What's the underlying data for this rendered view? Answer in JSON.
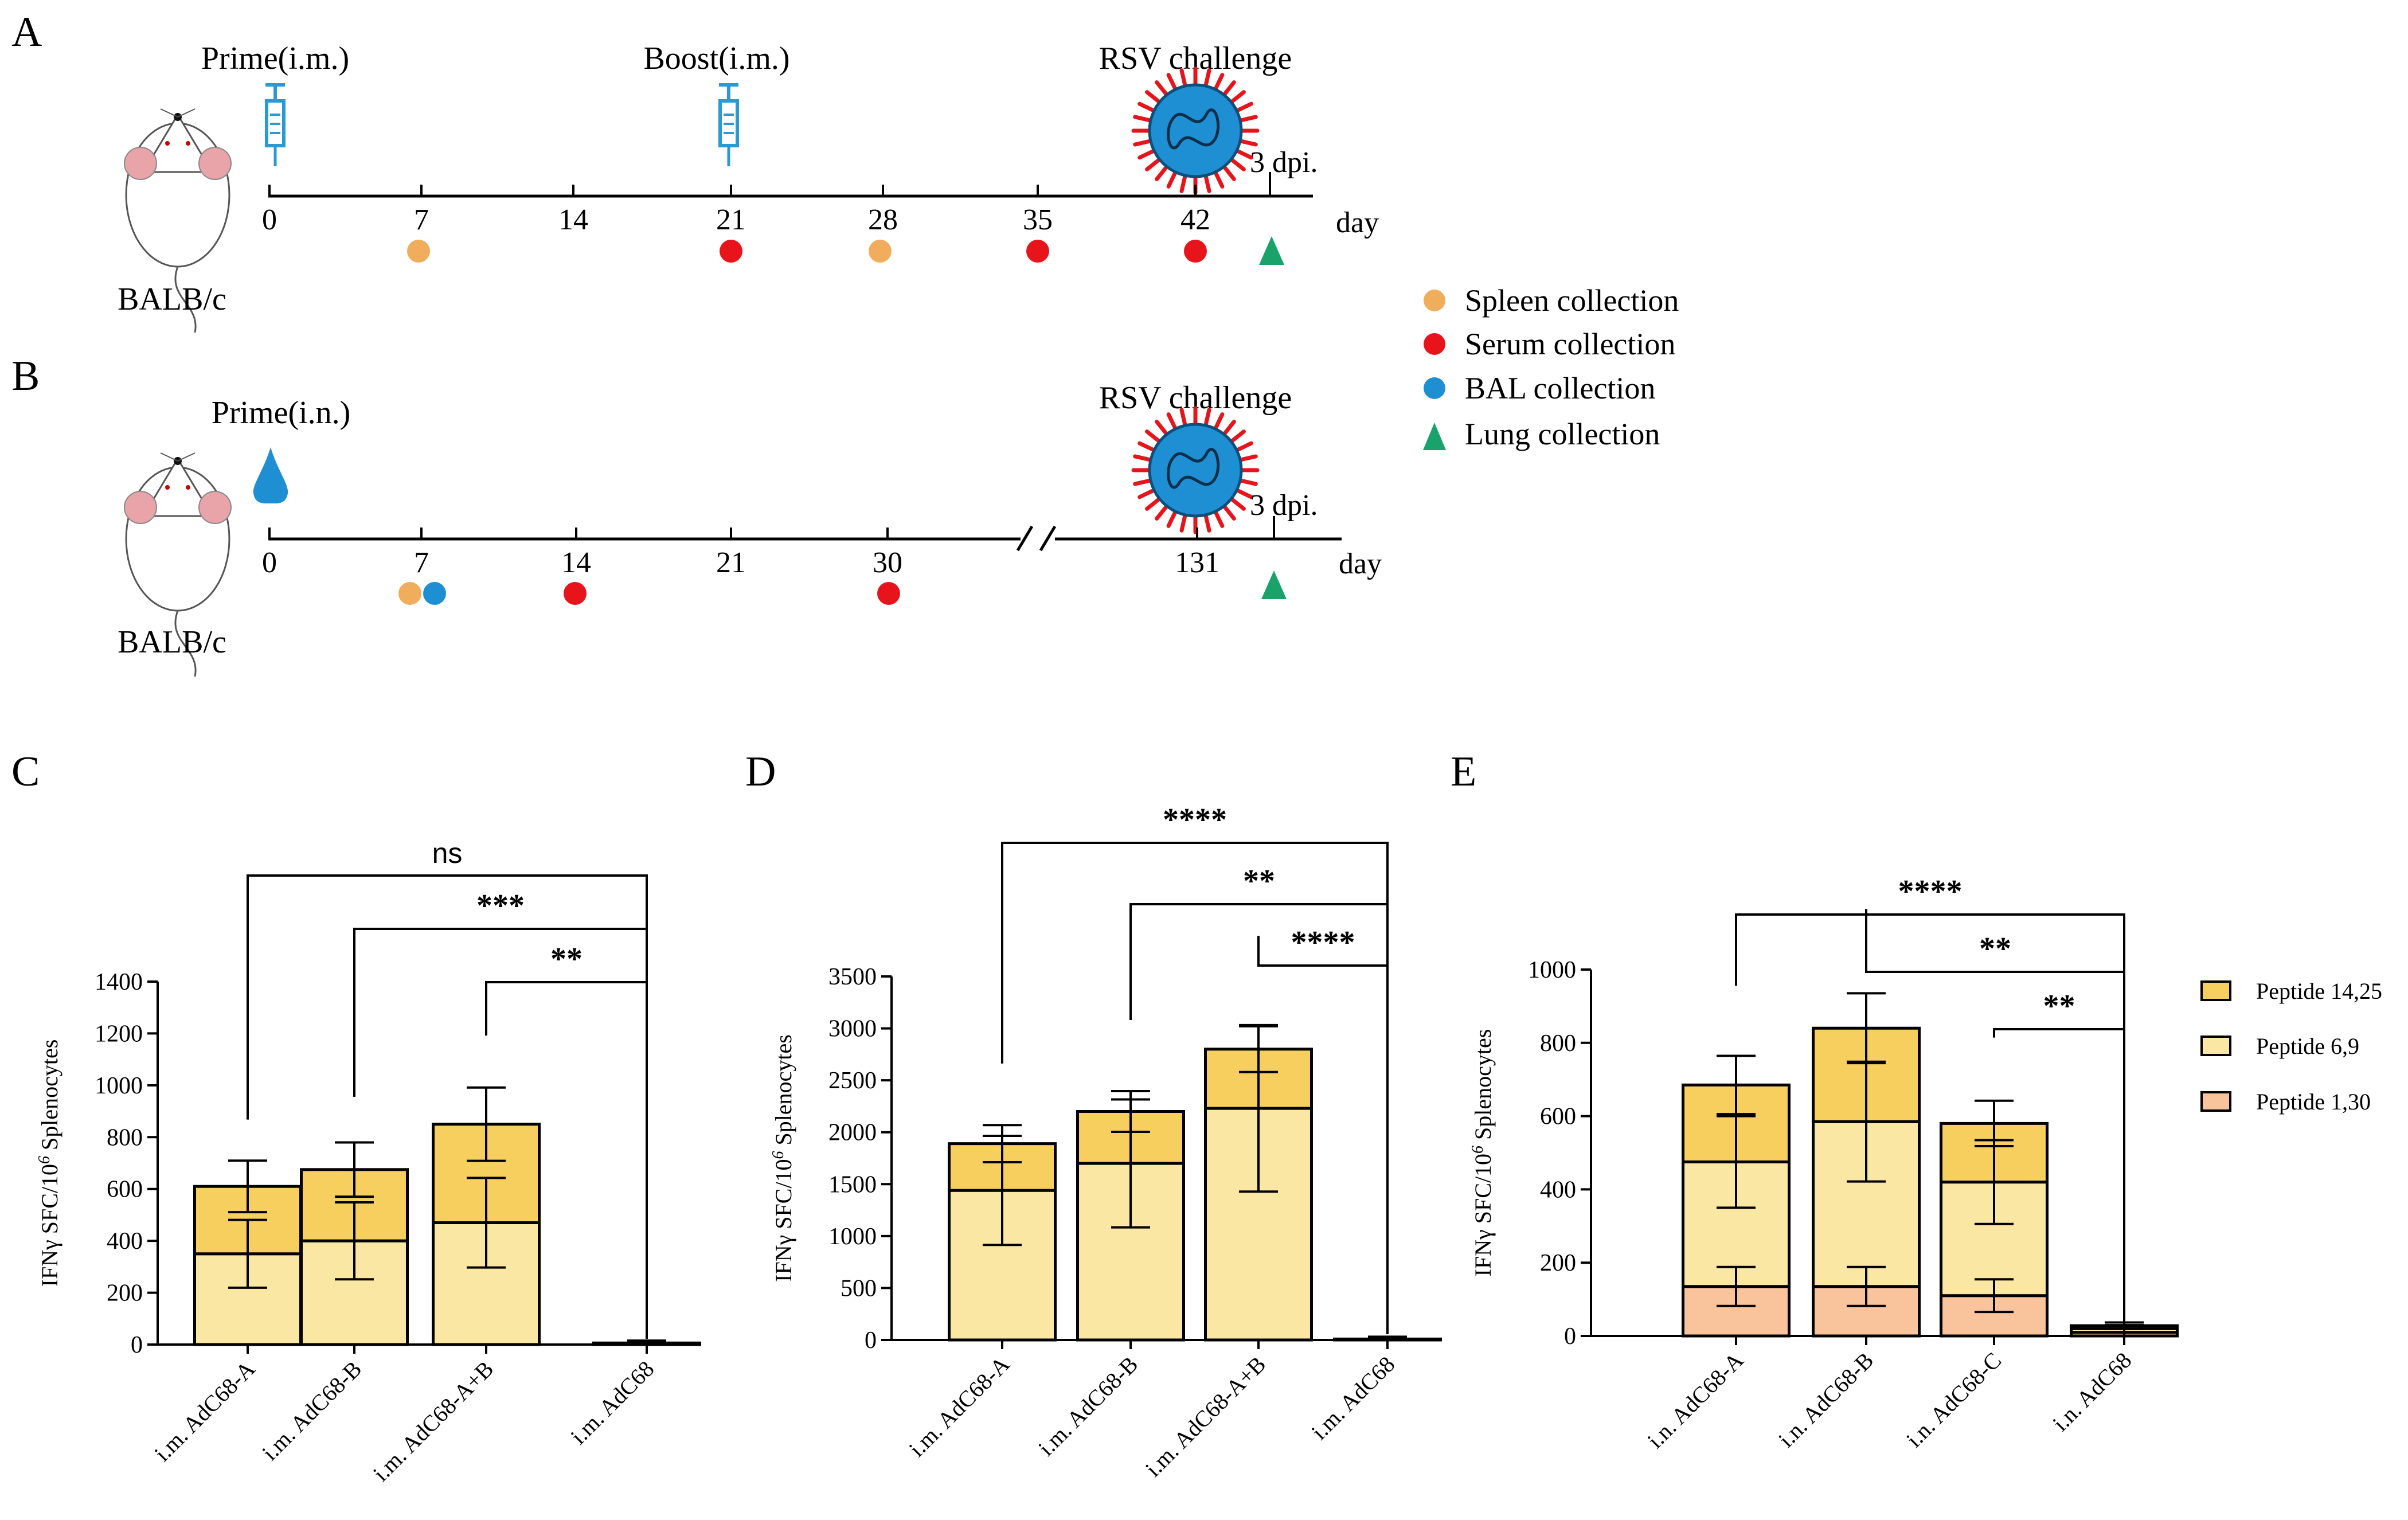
{
  "colors": {
    "p14": "#f7cf5f",
    "p69": "#fbe7a4",
    "p130": "#f9c49c",
    "spleen": "#f0ad5c",
    "serum": "#e8141c",
    "bal": "#1f8fd3",
    "lung": "#19a26a",
    "syringe": "#2a9ad7",
    "virus_body": "#1f8fd3",
    "virus_spike": "#e8141c"
  },
  "panel_a": {
    "label": "A",
    "prime": "Prime(i.m.)",
    "boost": "Boost(i.m.)",
    "challenge": "RSV challenge",
    "dpi": "3 dpi.",
    "mouse": "BALB/c",
    "day": "day",
    "ticks": [
      "0",
      "7",
      "14",
      "21",
      "28",
      "35",
      "42"
    ]
  },
  "panel_b": {
    "label": "B",
    "prime": "Prime(i.n.)",
    "challenge": "RSV challenge",
    "dpi": "3 dpi.",
    "mouse": "BALB/c",
    "day": "day",
    "ticks": [
      "0",
      "7",
      "14",
      "21",
      "30",
      "131"
    ]
  },
  "legend": {
    "spleen": "Spleen collection",
    "serum": "Serum collection",
    "bal": "BAL collection",
    "lung": "Lung collection"
  },
  "chart_data": [
    {
      "type": "bar",
      "label": "C",
      "stacked": true,
      "ylabel": "IFNγ SFC/10^6 Splenocytes",
      "ylim": [
        0,
        1400
      ],
      "yticks": [
        "0",
        "200",
        "400",
        "600",
        "800",
        "1000",
        "1200",
        "1400"
      ],
      "categories": [
        "i.m. AdC68-A",
        "i.m. AdC68-B",
        "i.m. AdC68-A+B",
        "i.m. AdC68"
      ],
      "series": [
        {
          "name": "Peptide 6,9",
          "values": [
            350,
            400,
            470,
            4
          ]
        },
        {
          "name": "Peptide 14,25",
          "values": [
            260,
            275,
            380,
            2
          ]
        }
      ],
      "significance": [
        {
          "label": "ns",
          "from": 0,
          "to": 3
        },
        {
          "label": "***",
          "from": 1,
          "to": 3
        },
        {
          "label": "**",
          "from": 2,
          "to": 3
        }
      ]
    },
    {
      "type": "bar",
      "label": "D",
      "stacked": true,
      "ylabel": "IFNγ SFC/10^6 Splenocytes",
      "ylim": [
        0,
        3500
      ],
      "yticks": [
        "0",
        "500",
        "1000",
        "1500",
        "2000",
        "2500",
        "3000",
        "3500"
      ],
      "categories": [
        "i.m. AdC68-A",
        "i.m. AdC68-B",
        "i.m. AdC68-A+B",
        "i.m. AdC68"
      ],
      "series": [
        {
          "name": "Peptide 6,9",
          "values": [
            1440,
            1700,
            2230,
            6
          ]
        },
        {
          "name": "Peptide 14,25",
          "values": [
            450,
            500,
            570,
            3
          ]
        }
      ],
      "significance": [
        {
          "label": "****",
          "from": 0,
          "to": 3
        },
        {
          "label": "**",
          "from": 1,
          "to": 3
        },
        {
          "label": "****",
          "from": 2,
          "to": 3
        }
      ]
    },
    {
      "type": "bar",
      "label": "E",
      "stacked": true,
      "ylabel": "IFNγ SFC/10^6 Splenocytes",
      "ylim": [
        0,
        1000
      ],
      "yticks": [
        "0",
        "200",
        "400",
        "600",
        "800",
        "1000"
      ],
      "categories": [
        "i.n. AdC68-A",
        "i.n. AdC68-B",
        "i.n. AdC68-C",
        "i.n. AdC68"
      ],
      "series": [
        {
          "name": "Peptide 1,30",
          "values": [
            135,
            135,
            110,
            10
          ]
        },
        {
          "name": "Peptide 6,9",
          "values": [
            340,
            450,
            310,
            10
          ]
        },
        {
          "name": "Peptide 14,25",
          "values": [
            210,
            255,
            160,
            8
          ]
        }
      ],
      "legend": [
        "Peptide 14,25",
        "Peptide 6,9",
        "Peptide 1,30"
      ],
      "significance": [
        {
          "label": "****",
          "from": 0,
          "to": 3
        },
        {
          "label": "**",
          "from": 1,
          "to": 3
        },
        {
          "label": "**",
          "from": 2,
          "to": 3
        }
      ]
    }
  ]
}
